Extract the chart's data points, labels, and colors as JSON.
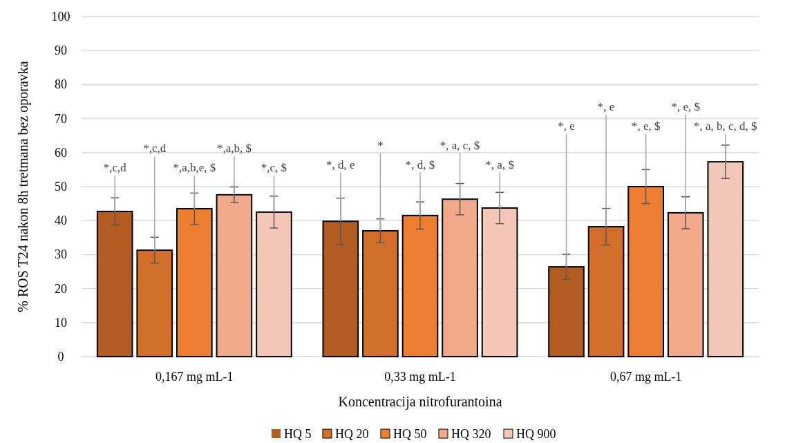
{
  "chart_data": {
    "type": "bar",
    "xlabel": "Koncentracija nitrofurantoina",
    "ylabel": "% ROS  T24 nakon 8h tretmana bez oporavka",
    "categories": [
      "0,167 mg mL-1",
      "0,33 mg mL-1",
      "0,67 mg mL-1"
    ],
    "series": [
      {
        "name": "HQ 5",
        "color": "#b35c22",
        "values": [
          42.7,
          39.8,
          26.4
        ],
        "errors": [
          4,
          6.8,
          3.7
        ]
      },
      {
        "name": "HQ 20",
        "color": "#d26d2a",
        "values": [
          31.3,
          37,
          38.2
        ],
        "errors": [
          3.8,
          3.5,
          5.4
        ]
      },
      {
        "name": "HQ 50",
        "color": "#ed7d31",
        "values": [
          43.5,
          41.5,
          50
        ],
        "errors": [
          4.6,
          4,
          5
        ]
      },
      {
        "name": "HQ 320",
        "color": "#f0a98a",
        "values": [
          47.6,
          46.3,
          42.3
        ],
        "errors": [
          2.3,
          4.6,
          4.7
        ]
      },
      {
        "name": "HQ 900",
        "color": "#f4c7b8",
        "values": [
          42.5,
          43.7,
          57.3
        ],
        "errors": [
          4.7,
          4.6,
          4.9
        ]
      }
    ],
    "annotations": [
      {
        "text": "*,c,d",
        "y": 42.7
      },
      {
        "text": "*,c,d",
        "y": 31.3
      },
      {
        "text": "*,a,b,e, $",
        "y": 43.5
      },
      {
        "text": "*,a,b, $",
        "y": 47.6
      },
      {
        "text": "*,c, $",
        "y": 42.5
      },
      {
        "text": "*, d, e",
        "y": 39.8
      },
      {
        "text": "*",
        "y": 37
      },
      {
        "text": "*, d, $",
        "y": 41.5
      },
      {
        "text": "*, a, c, $",
        "y": 46.3
      },
      {
        "text": "*, a, $",
        "y": 43.7
      },
      {
        "text": "*, e",
        "y": 26.4
      },
      {
        "text": "*, e",
        "y": 38.2
      },
      {
        "text": "*, e, $",
        "y": 50
      },
      {
        "text": "*, e, $",
        "y": 42.3
      },
      {
        "text": "*, a, b, c, d, $",
        "y": 57.3
      }
    ],
    "ylim": [
      0,
      100
    ],
    "yticks": [
      0,
      10,
      20,
      30,
      40,
      50,
      60,
      70,
      80,
      90,
      100
    ],
    "grid": "y",
    "legend": "bottom"
  }
}
